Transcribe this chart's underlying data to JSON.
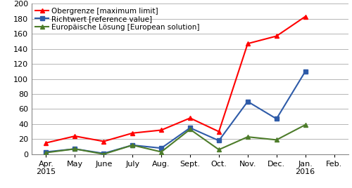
{
  "x_labels": [
    "Apr.\n2015",
    "May",
    "June",
    "July",
    "Aug.",
    "Sept.",
    "Oct.",
    "Nov.",
    "Dec.",
    "Jan.\n2016",
    "Feb."
  ],
  "x_positions": [
    0,
    1,
    2,
    3,
    4,
    5,
    6,
    7,
    8,
    9,
    10
  ],
  "red_label": "Obergrenze [maximum limit]",
  "blue_label": "Richtwert [reference value]",
  "green_label": "Europäische Lösung [European solution]",
  "red_values": [
    15,
    24,
    17,
    28,
    32,
    48,
    30,
    147,
    157,
    183
  ],
  "blue_values": [
    3,
    7,
    1,
    12,
    8,
    35,
    18,
    70,
    47,
    110
  ],
  "green_values": [
    2,
    7,
    0,
    12,
    3,
    33,
    6,
    23,
    19,
    39
  ],
  "data_x_positions": [
    0,
    1,
    2,
    3,
    4,
    5,
    6,
    7,
    8,
    9
  ],
  "red_color": "#FF0000",
  "blue_color": "#2E5BA8",
  "green_color": "#4D7C2A",
  "red_marker": "^",
  "blue_marker": "s",
  "green_marker": "^",
  "ylim": [
    0,
    200
  ],
  "yticks": [
    0,
    20,
    40,
    60,
    80,
    100,
    120,
    140,
    160,
    180,
    200
  ],
  "background_color": "#FFFFFF",
  "grid_color": "#AAAAAA",
  "legend_fontsize": 7.5,
  "axis_fontsize": 8,
  "linewidth": 1.5,
  "markersize": 5
}
